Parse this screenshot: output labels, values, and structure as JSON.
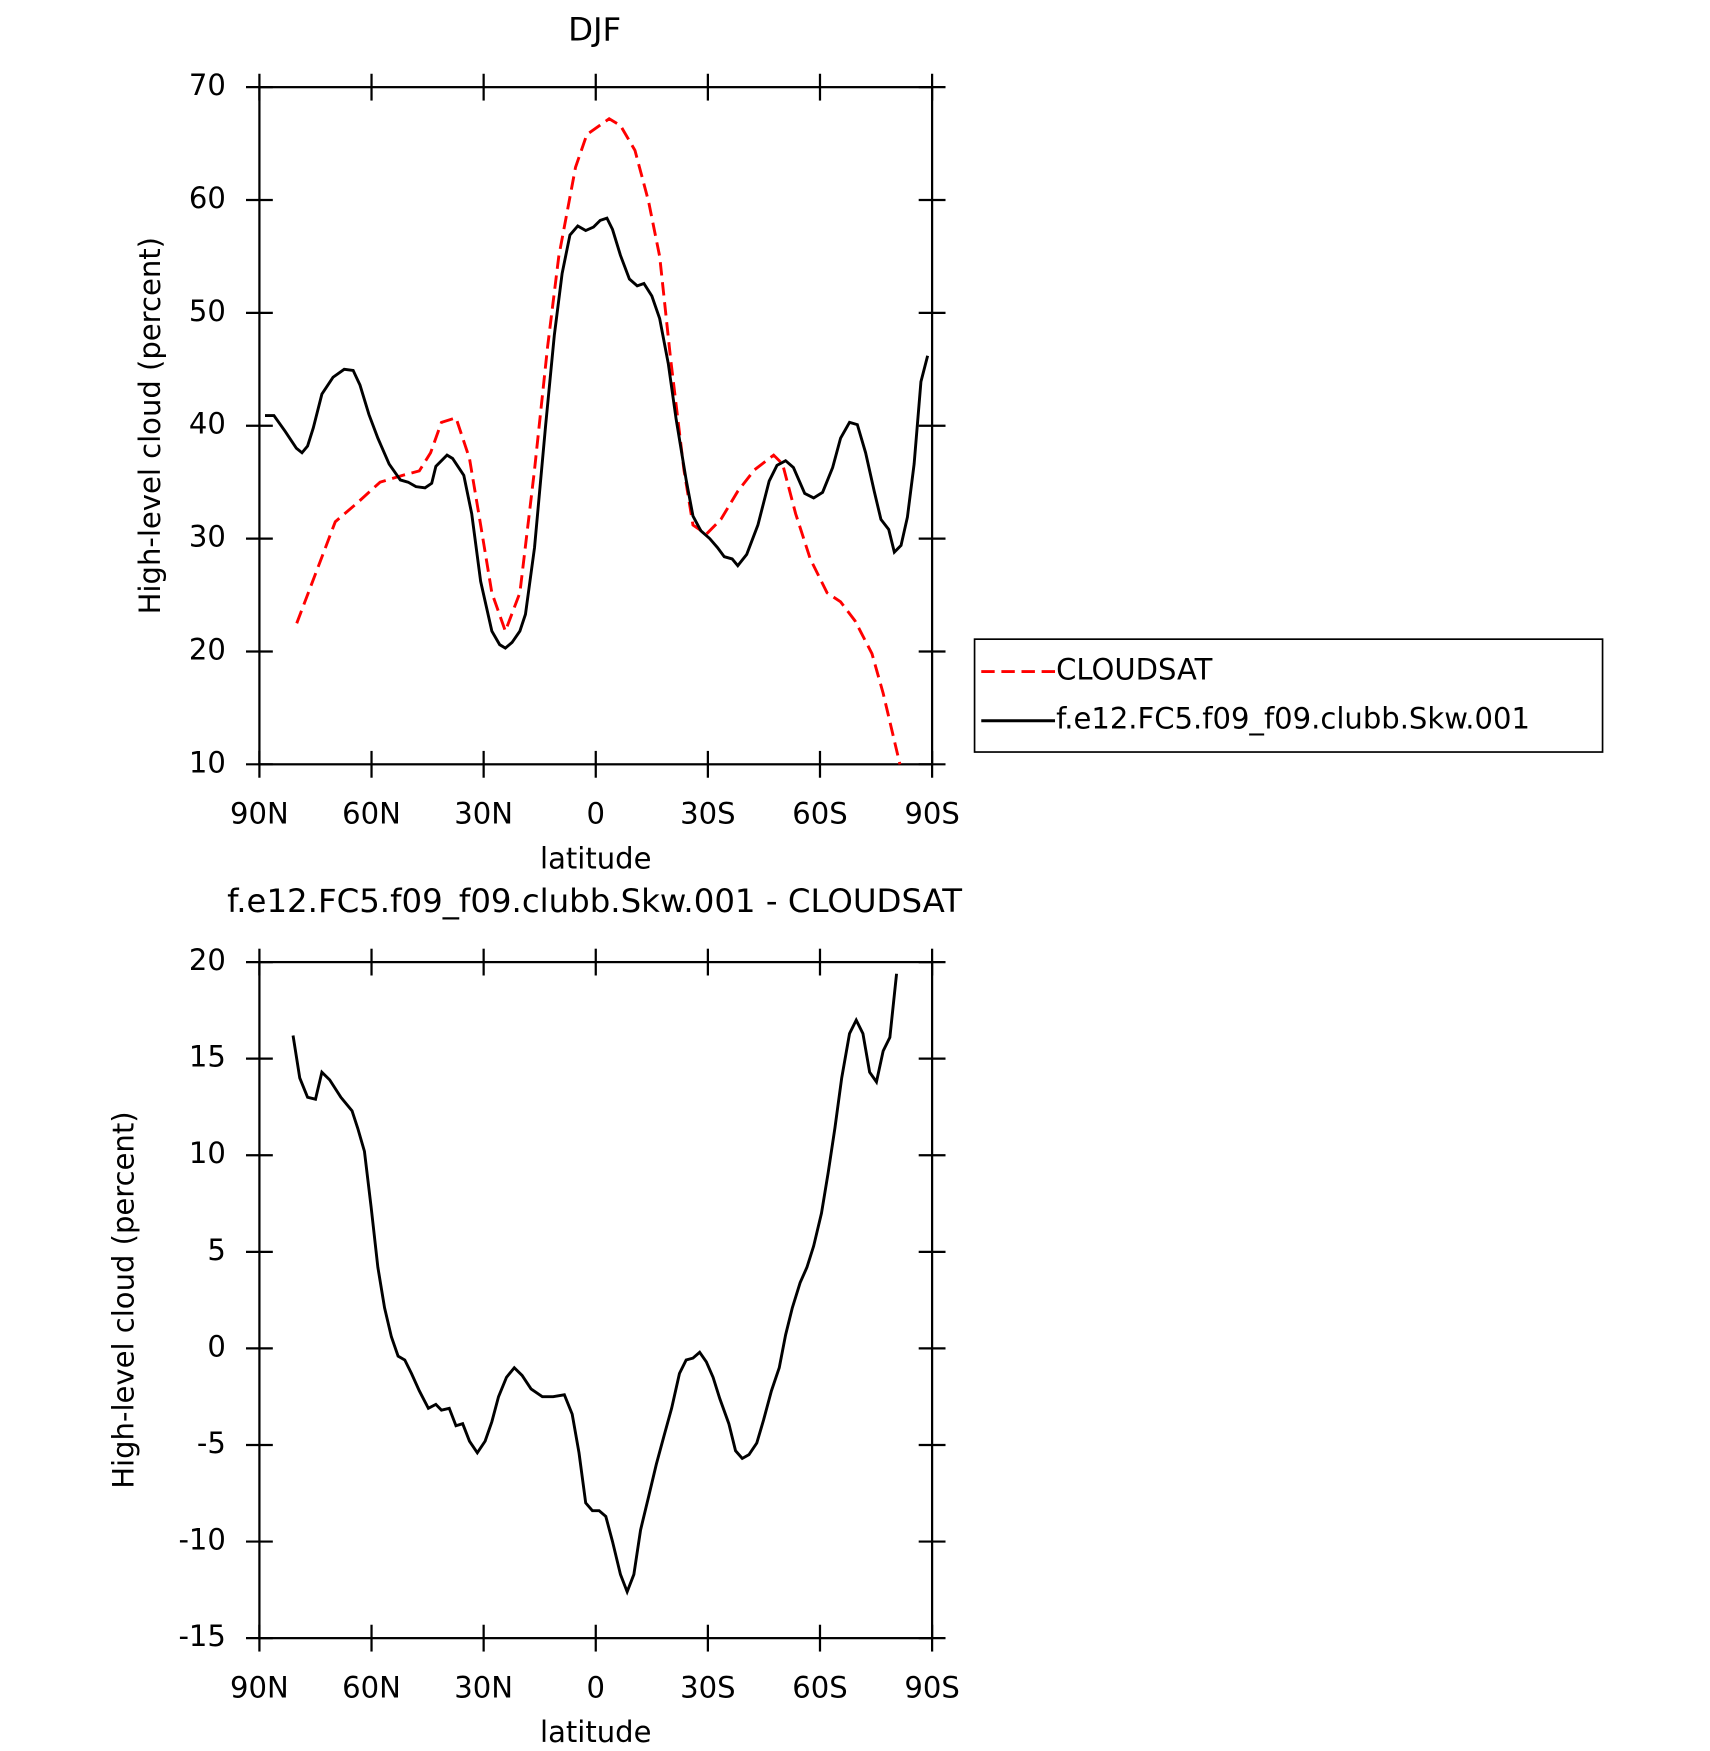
{
  "chart_data": [
    {
      "type": "line",
      "title": "DJF",
      "xlabel": "latitude",
      "ylabel": "High-level cloud (percent)",
      "xlim": [
        90,
        -90
      ],
      "xticks": [
        {
          "value": 90,
          "label": "90N"
        },
        {
          "value": 60,
          "label": "60N"
        },
        {
          "value": 30,
          "label": "30N"
        },
        0,
        {
          "value": -30,
          "label": "30S"
        },
        {
          "value": -60,
          "label": "60S"
        },
        {
          "value": -90,
          "label": "90S"
        }
      ],
      "ylim": [
        10,
        70
      ],
      "yticks": [
        10,
        20,
        30,
        40,
        50,
        60,
        70
      ],
      "legend": "outside-right",
      "series": [
        {
          "name": "CLOUDSAT",
          "color": "#ff0000",
          "dash": true,
          "x": [
            80,
            69.7,
            63.7,
            57.7,
            51.7,
            47.2,
            44.2,
            41.3,
            37.4,
            33.8,
            30.8,
            27.8,
            24.2,
            20.3,
            16.4,
            12.9,
            9.9,
            5.4,
            2.4,
            -3.6,
            -6.6,
            -10.5,
            -14.1,
            -17.1,
            -20,
            -23.6,
            -26,
            -29.6,
            -33.5,
            -38,
            -42.5,
            -47.6,
            -50,
            -53.5,
            -57.4,
            -61.9,
            -65.5,
            -69.4,
            -73.9,
            -76.9,
            -81.4
          ],
          "values": [
            22.5,
            31.5,
            33.2,
            35,
            35.6,
            36,
            37.6,
            40.3,
            40.7,
            37.1,
            31.2,
            25.2,
            21.8,
            25.2,
            36.1,
            47,
            55,
            62.9,
            65.8,
            67.2,
            66.6,
            64.4,
            59.9,
            55,
            46,
            36.1,
            31.2,
            30.4,
            31.7,
            34.2,
            36.1,
            37.4,
            36.6,
            32.2,
            28.2,
            25.2,
            24.4,
            22.7,
            19.8,
            16.3,
            10
          ]
        },
        {
          "name": "f.e12.FC5.f09_f09.clubb.Skw.001",
          "color": "#000000",
          "dash": false,
          "x": [
            88.5,
            86.1,
            83.1,
            80.1,
            78.6,
            77.1,
            75.6,
            73.3,
            70.3,
            67.3,
            64.9,
            63.1,
            60.7,
            58.3,
            55.3,
            52.3,
            50.2,
            48.1,
            45.7,
            43.9,
            42.8,
            39.8,
            38.3,
            35.3,
            33.2,
            30.8,
            27.8,
            25.7,
            24.2,
            22.4,
            20.3,
            18.8,
            16.4,
            13.4,
            11.1,
            9,
            6.9,
            4.8,
            2.7,
            0.6,
            -1.2,
            -3,
            -4.5,
            -6.6,
            -9,
            -11.1,
            -12.9,
            -15,
            -17.1,
            -19.4,
            -21.5,
            -24.2,
            -26,
            -28.1,
            -30.5,
            -32.6,
            -34.4,
            -36.5,
            -38,
            -40.4,
            -43.4,
            -46.4,
            -48.5,
            -50.8,
            -52.9,
            -55.9,
            -58.3,
            -60.7,
            -63.4,
            -65.5,
            -67.9,
            -70,
            -72.2,
            -74.5,
            -76.3,
            -78.4,
            -79.9,
            -81.7,
            -83.4,
            -85.2,
            -87,
            -88.8
          ],
          "values": [
            40.9,
            40.9,
            39.5,
            38,
            37.6,
            38.2,
            39.8,
            42.8,
            44.3,
            45,
            44.9,
            43.6,
            41,
            38.9,
            36.6,
            35.2,
            35,
            34.6,
            34.5,
            34.9,
            36.4,
            37.4,
            37.1,
            35.6,
            32.2,
            26.2,
            21.8,
            20.6,
            20.3,
            20.8,
            21.8,
            23.3,
            29.2,
            40.1,
            48,
            53.5,
            56.9,
            57.7,
            57.3,
            57.6,
            58.2,
            58.4,
            57.4,
            55.1,
            53,
            52.4,
            52.6,
            51.5,
            49.5,
            45.5,
            40.6,
            35.2,
            32,
            30.7,
            30,
            29.2,
            28.4,
            28.2,
            27.6,
            28.6,
            31.2,
            35.1,
            36.5,
            36.9,
            36.3,
            34,
            33.6,
            34.1,
            36.3,
            38.9,
            40.3,
            40.1,
            37.6,
            34.2,
            31.7,
            30.8,
            28.8,
            29.4,
            31.9,
            36.6,
            43.9,
            46.2
          ]
        }
      ]
    },
    {
      "type": "line",
      "title": "f.e12.FC5.f09_f09.clubb.Skw.001 - CLOUDSAT",
      "xlabel": "latitude",
      "ylabel": "High-level cloud (percent)",
      "xlim": [
        90,
        -90
      ],
      "xticks": [
        {
          "value": 90,
          "label": "90N"
        },
        {
          "value": 60,
          "label": "60N"
        },
        {
          "value": 30,
          "label": "30N"
        },
        0,
        {
          "value": -30,
          "label": "30S"
        },
        {
          "value": -60,
          "label": "60S"
        },
        {
          "value": -90,
          "label": "90S"
        }
      ],
      "ylim": [
        -15,
        20
      ],
      "yticks": [
        -15,
        -10,
        -5,
        0,
        5,
        10,
        15,
        20
      ],
      "series": [
        {
          "color": "#000000",
          "dash": false,
          "x": [
            81,
            79.2,
            77.1,
            75,
            73.3,
            71.2,
            68.2,
            65.2,
            63.7,
            61.9,
            60.1,
            58.3,
            56.5,
            54.7,
            52.9,
            51.1,
            49.3,
            47.2,
            44.8,
            42.8,
            41.3,
            39.2,
            37.4,
            35.6,
            33.8,
            31.7,
            29.6,
            27.8,
            26,
            23.9,
            21.8,
            19.7,
            17.3,
            14.3,
            11.4,
            8.4,
            6.3,
            4.5,
            2.7,
            0.9,
            -0.9,
            -2.7,
            -4.5,
            -6.6,
            -8.4,
            -10.2,
            -12,
            -14.1,
            -16.2,
            -18.3,
            -20.3,
            -22.4,
            -24.2,
            -26,
            -27.8,
            -29.6,
            -31.4,
            -33.2,
            -35.6,
            -37.4,
            -39.2,
            -41,
            -43.1,
            -44.9,
            -47,
            -49.1,
            -50.8,
            -52.6,
            -54.7,
            -56.5,
            -58.3,
            -60.4,
            -62.2,
            -64,
            -65.8,
            -67.9,
            -69.7,
            -71.5,
            -73.3,
            -75.1,
            -76.9,
            -78.7,
            -80.5
          ],
          "values": [
            16.2,
            14,
            13,
            12.9,
            14.3,
            13.9,
            13,
            12.3,
            11.4,
            10.2,
            7.3,
            4.2,
            2.1,
            0.6,
            -0.4,
            -0.6,
            -1.3,
            -2.2,
            -3.1,
            -2.9,
            -3.2,
            -3.1,
            -4,
            -3.9,
            -4.8,
            -5.4,
            -4.8,
            -3.8,
            -2.5,
            -1.5,
            -1,
            -1.4,
            -2.1,
            -2.5,
            -2.5,
            -2.4,
            -3.4,
            -5.4,
            -8,
            -8.4,
            -8.4,
            -8.7,
            -10,
            -11.7,
            -12.6,
            -11.7,
            -9.4,
            -7.7,
            -6,
            -4.5,
            -3.1,
            -1.3,
            -0.6,
            -0.5,
            -0.2,
            -0.7,
            -1.5,
            -2.6,
            -3.9,
            -5.3,
            -5.7,
            -5.5,
            -4.9,
            -3.7,
            -2.2,
            -1,
            0.7,
            2.1,
            3.4,
            4.2,
            5.3,
            7,
            9.1,
            11.4,
            14,
            16.3,
            17,
            16.3,
            14.3,
            13.8,
            15.4,
            16.1,
            19.4
          ]
        }
      ]
    }
  ]
}
